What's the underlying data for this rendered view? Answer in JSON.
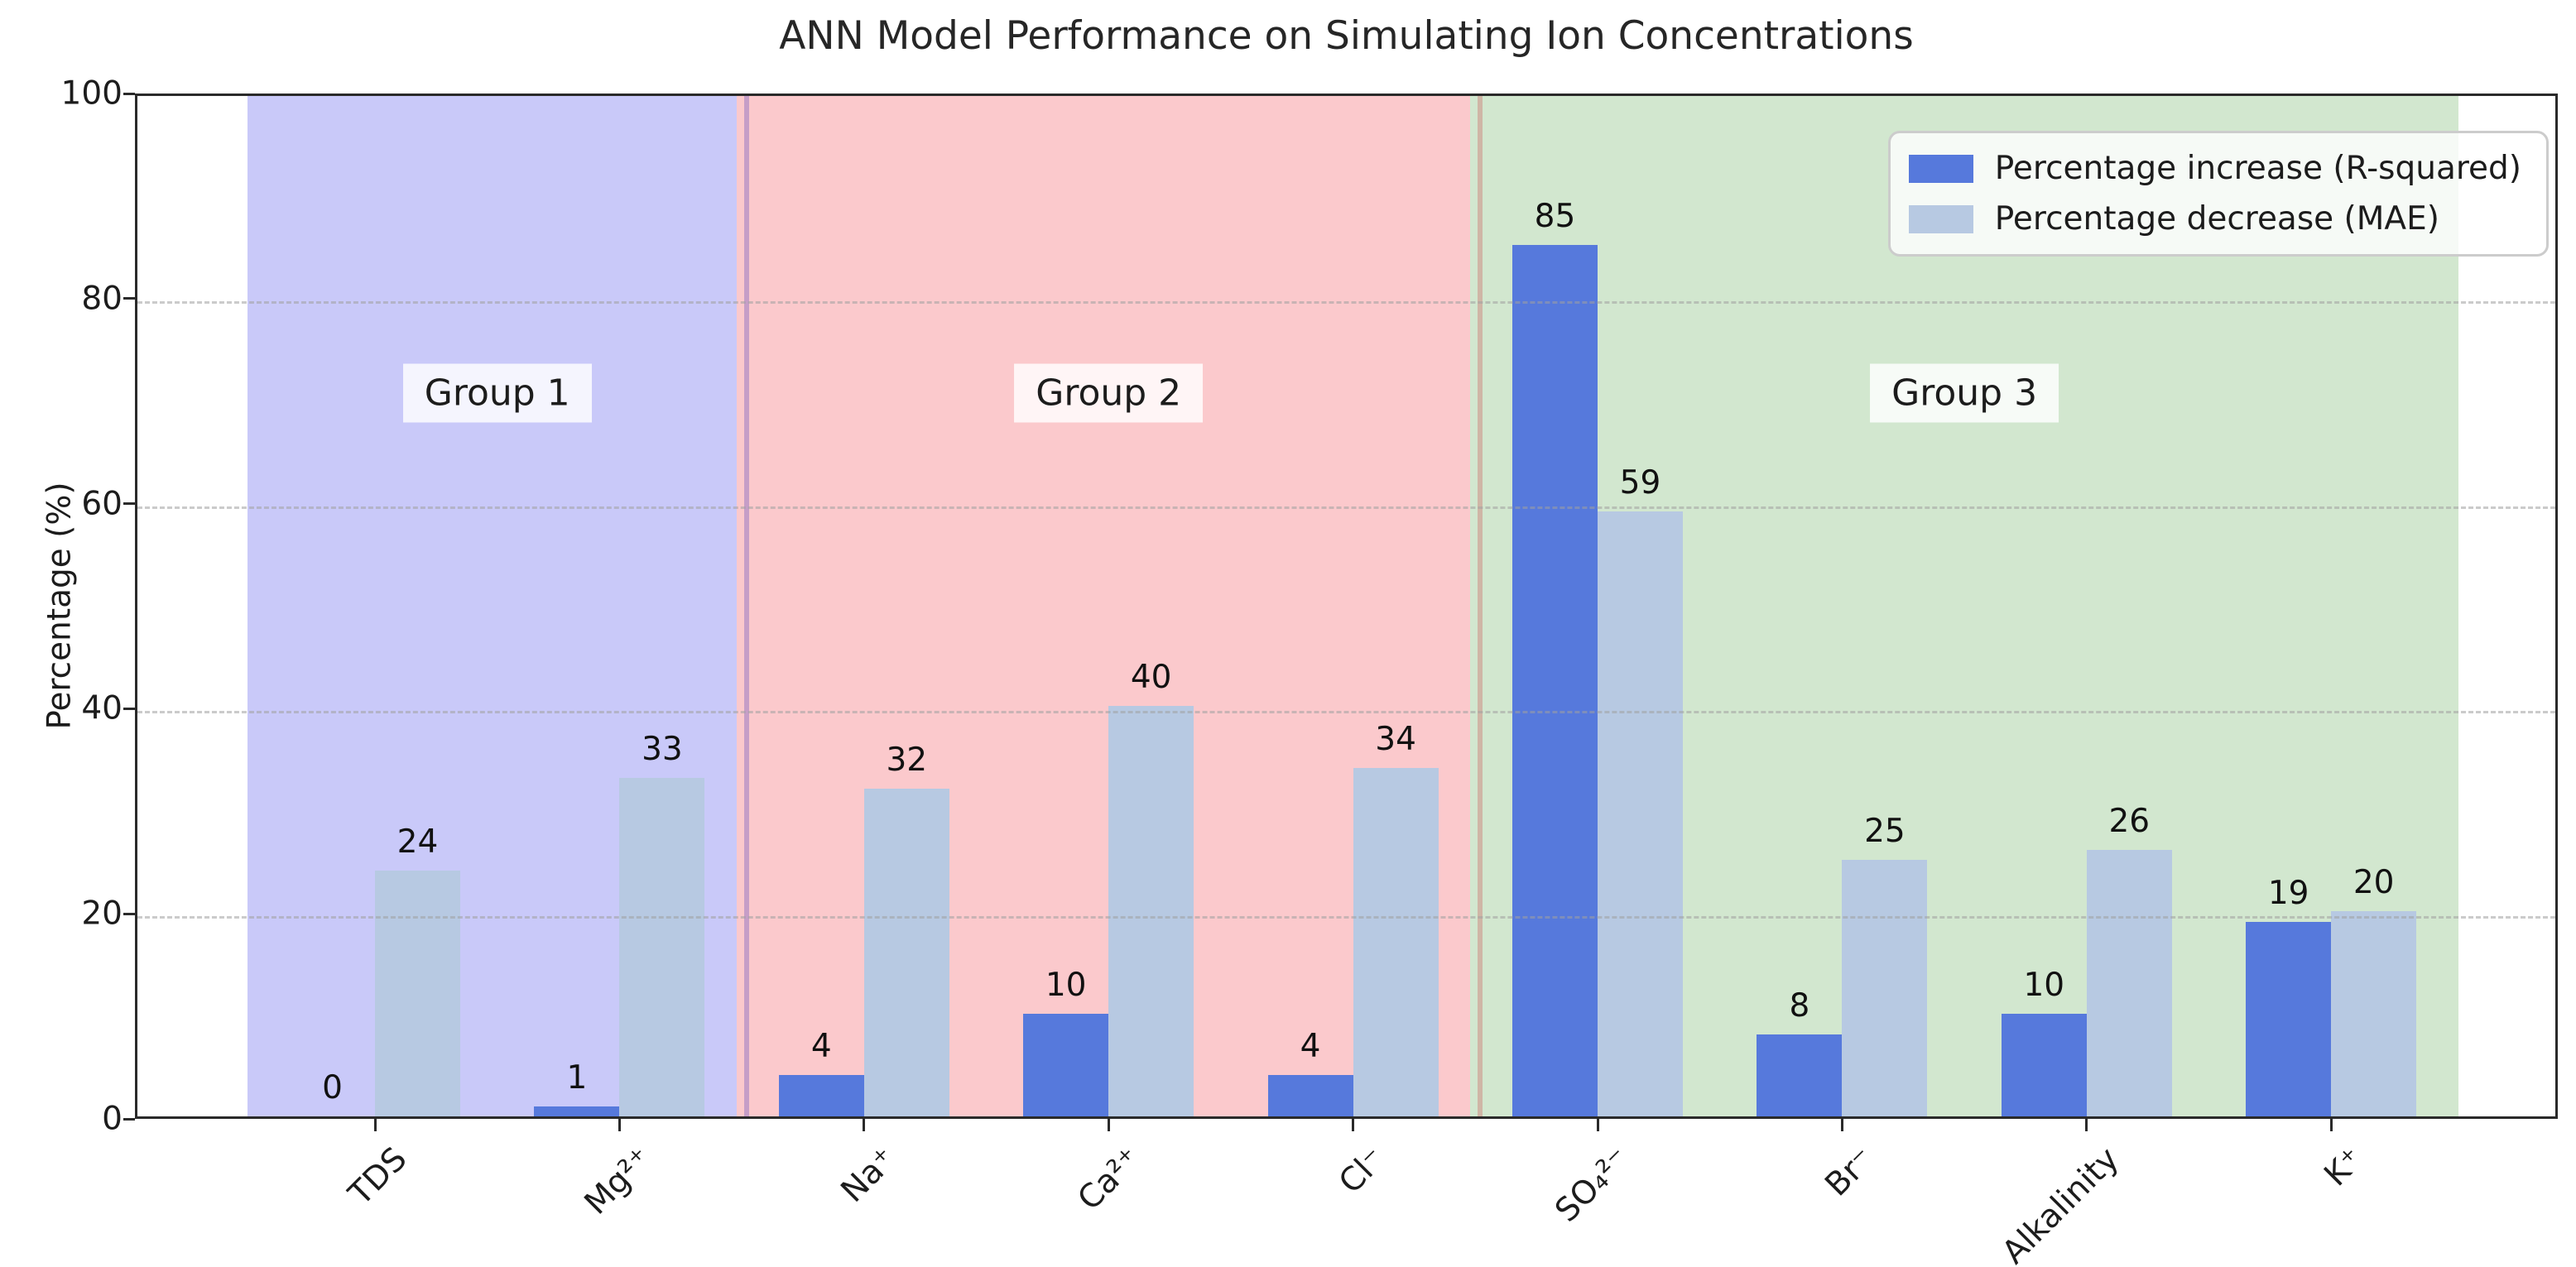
{
  "chart_data": {
    "type": "bar",
    "title": "ANN Model Performance on Simulating Ion Concentrations",
    "xlabel": "",
    "ylabel": "Percentage (%)",
    "ylim": [
      0,
      100
    ],
    "yticks": [
      0,
      20,
      40,
      60,
      80,
      100
    ],
    "grid": "horizontal dashed lines at y ticks, drawn over bars",
    "legend_position": "upper right",
    "categories": [
      "TDS",
      "Mg²⁺",
      "Na⁺",
      "Ca²⁺",
      "Cl⁻",
      "SO₄²⁻",
      "Br⁻",
      "Alkalinity",
      "K⁺"
    ],
    "series": [
      {
        "name": "Percentage increase (R-squared)",
        "color": "#5679dc",
        "values": [
          0,
          1,
          4,
          10,
          4,
          85,
          8,
          10,
          19
        ]
      },
      {
        "name": "Percentage decrease (MAE)",
        "color": "#b7c9e2",
        "values": [
          24,
          33,
          32,
          40,
          34,
          59,
          25,
          26,
          20
        ]
      }
    ],
    "bar_value_labels_shown": true,
    "groups": [
      {
        "label": "Group 1",
        "categories_span": [
          0,
          1
        ],
        "color": "#c9c9f9"
      },
      {
        "label": "Group 2",
        "categories_span": [
          2,
          4
        ],
        "color": "#fbc9cc"
      },
      {
        "label": "Group 3",
        "categories_span": [
          5,
          8
        ],
        "color": "#d2e7cf"
      }
    ],
    "group_label_y_value": 71
  }
}
